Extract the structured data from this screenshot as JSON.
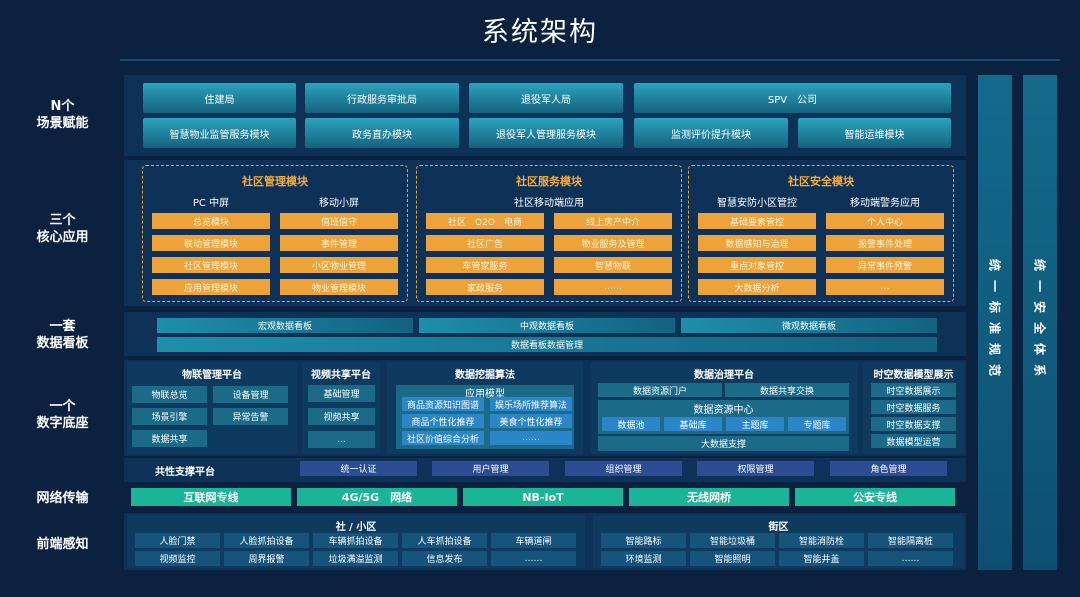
{
  "title": "系统架构",
  "scenes": {
    "label": [
      "N个",
      "场景赋能"
    ],
    "row1": [
      "住建局",
      "行政服务审批局",
      "退役军人局",
      "SPV　公司"
    ],
    "row2": [
      "智慧物业监管服务模块",
      "政务直办模块",
      "退役军人管理服务模块",
      "监测评价提升模块",
      "智能运维模块"
    ]
  },
  "core": {
    "label": [
      "三个",
      "核心应用"
    ],
    "modules": [
      {
        "title": "社区管理模块",
        "cols": [
          {
            "title": "PC 中屏",
            "items": [
              "总览模块",
              "联动管理模块",
              "社区管理模块",
              "应用管理模块"
            ]
          },
          {
            "title": "移动小屏",
            "items": [
              "值班值守",
              "事件管理",
              "小区物业管理",
              "物业管理模块"
            ]
          }
        ]
      },
      {
        "title": "社区服务模块",
        "subtitle": "社区移动端应用",
        "cols": [
          {
            "items": [
              "社区　O2O　电商",
              "社区广告",
              "车管家服务",
              "家政服务"
            ]
          },
          {
            "items": [
              "线上房产中介",
              "物业服务及管理",
              "智慧物联",
              "……"
            ]
          }
        ]
      },
      {
        "title": "社区安全模块",
        "cols": [
          {
            "title": "智慧安防小区管控",
            "items": [
              "基础要素管控",
              "数据感知与治理",
              "重点对象管控",
              "大数据分析"
            ]
          },
          {
            "title": "移动端警务应用",
            "items": [
              "个人中心",
              "报警事件处理",
              "异常事件预警",
              "…"
            ]
          }
        ]
      }
    ]
  },
  "dashboard": {
    "label": [
      "一套",
      "数据看板"
    ],
    "row1": [
      "宏观数据看板",
      "中观数据看板",
      "微观数据看板"
    ],
    "row2": "数据看板数据管理"
  },
  "base": {
    "label": [
      "一个",
      "数字底座"
    ],
    "iot": {
      "title": "物联管理平台",
      "items": [
        "物联总览",
        "设备管理",
        "场景引擎",
        "异常告警",
        "数据共享"
      ]
    },
    "video": {
      "title": "视频共享平台",
      "items": [
        "基础管理",
        "视频共享",
        "..."
      ]
    },
    "mining": {
      "title": "数据挖掘算法",
      "subtitle": "应用模型",
      "items": [
        "商品资源知识图谱",
        "娱乐场所推荐算法",
        "商品个性化推荐",
        "美食个性化推荐",
        "社区价值综合分析",
        "……"
      ]
    },
    "governance": {
      "title": "数据治理平台",
      "row1": [
        "数据资源门户",
        "数据共享交换"
      ],
      "center": "数据资源中心",
      "libs": [
        "数据池",
        "基础库",
        "主题库",
        "专题库"
      ],
      "bottom": "大数据支撑"
    },
    "spatial": {
      "title": "时空数据模型展示",
      "items": [
        "时空数据展示",
        "时空数据服务",
        "时空数据支撑",
        "数据模型运营"
      ]
    }
  },
  "common": {
    "title": "共性支撑平台",
    "items": [
      "统一认证",
      "用户管理",
      "组织管理",
      "权限管理",
      "角色管理"
    ]
  },
  "network": {
    "label": "网络传输",
    "items": [
      "互联网专线",
      "4G/5G　网络",
      "NB-IoT",
      "无线网桥",
      "公安专线"
    ]
  },
  "frontend": {
    "label": "前端感知",
    "community": {
      "title": "社 / 小区",
      "items": [
        "人脸门禁",
        "人脸抓拍设备",
        "车辆抓拍设备",
        "人车抓拍设备",
        "车辆道闸",
        "视频监控",
        "周界报警",
        "垃圾满溢监测",
        "信息发布",
        "……"
      ]
    },
    "street": {
      "title": "街区",
      "items": [
        "智能路标",
        "智能垃圾桶",
        "智能消防栓",
        "智能隔离桩",
        "环境监测",
        "智能照明",
        "智能井盖",
        "……"
      ]
    }
  },
  "side": [
    "统一标准规范",
    "统一安全体系"
  ],
  "colors": {
    "background": "#0a2140",
    "panel": "#0e3257",
    "orange": "#eea23a",
    "teal": "#1ab596",
    "module_title": "#f3ab3e"
  }
}
